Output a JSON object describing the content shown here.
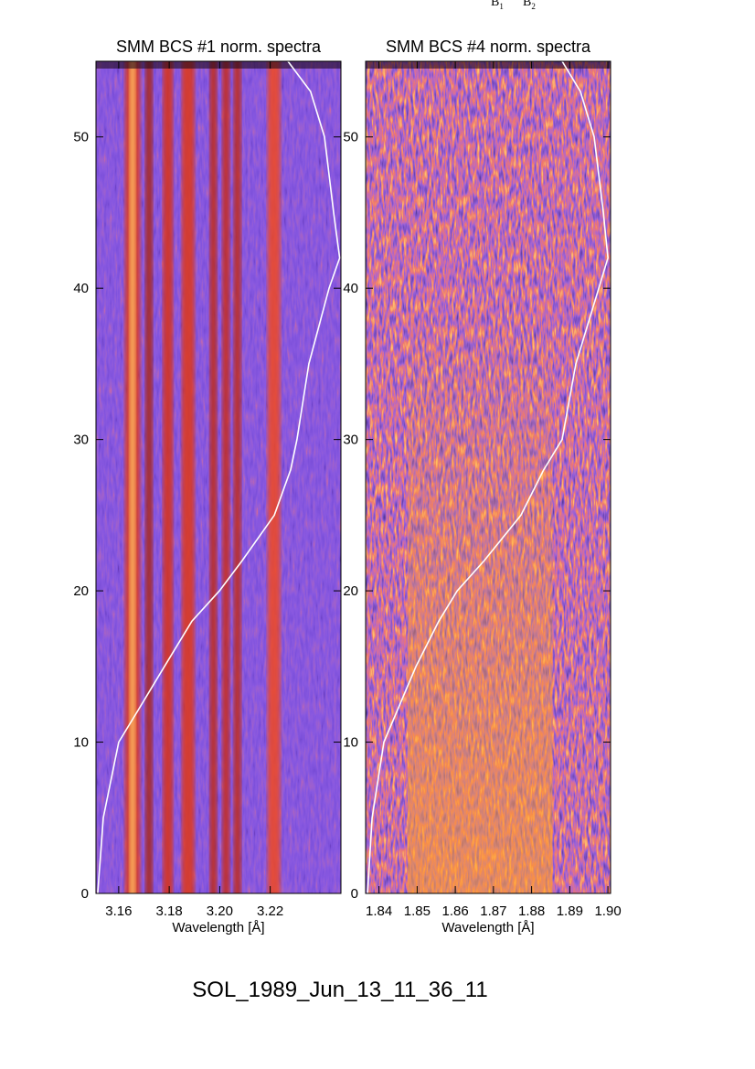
{
  "top_labels": [
    {
      "text": "B",
      "sub": "1"
    },
    {
      "text": "B",
      "sub": "2"
    }
  ],
  "footer": "SOL_1989_Jun_13_11_36_11",
  "chart_data": [
    {
      "type": "heatmap",
      "title": "SMM BCS #1 norm. spectra",
      "x_label": "Wavelength [Å]",
      "xlim": [
        3.151,
        3.248
      ],
      "ylim": [
        0,
        55
      ],
      "xticks": [
        3.16,
        3.18,
        {
          "value": 3.2,
          "label": "3.20"
        },
        3.22
      ],
      "yticks": [
        0,
        10,
        20,
        30,
        40,
        50
      ],
      "background": "blue",
      "bands": [
        {
          "x": 3.1655,
          "width": 0.006,
          "color": "#e03a18"
        },
        {
          "x": 3.1655,
          "width": 0.0025,
          "color": "#ffb860"
        },
        {
          "x": 3.172,
          "width": 0.003,
          "color": "#a82818"
        },
        {
          "x": 3.1795,
          "width": 0.004,
          "color": "#d83018"
        },
        {
          "x": 3.1875,
          "width": 0.005,
          "color": "#e03818"
        },
        {
          "x": 3.1975,
          "width": 0.003,
          "color": "#c02a18"
        },
        {
          "x": 3.2025,
          "width": 0.003,
          "color": "#c82c18"
        },
        {
          "x": 3.207,
          "width": 0.003,
          "color": "#c02a18"
        },
        {
          "x": 3.2215,
          "width": 0.005,
          "color": "#f04820"
        }
      ],
      "curve": {
        "color": "#ffffff",
        "x": [
          3.1517,
          3.1539,
          3.16,
          3.1673,
          3.1781,
          3.189,
          3.1999,
          3.2089,
          3.2216,
          3.2281,
          3.2306,
          3.2353,
          3.2433,
          3.2475,
          3.2451,
          3.2415,
          3.236,
          3.227
        ],
        "y": [
          0,
          5,
          10,
          12,
          15,
          18,
          20,
          22,
          25,
          28,
          30,
          35,
          40,
          42,
          45,
          50,
          53,
          55
        ]
      }
    },
    {
      "type": "heatmap",
      "title": "SMM BCS #4 norm. spectra",
      "x_label": "Wavelength [Å]",
      "xlim": [
        1.8365,
        1.9007
      ],
      "ylim": [
        0,
        55
      ],
      "xticks": [
        1.84,
        1.85,
        1.86,
        1.87,
        1.88,
        1.89,
        {
          "value": 1.9,
          "label": "1.90"
        }
      ],
      "yticks": [
        0,
        10,
        20,
        30,
        40,
        50
      ],
      "background": "speckle",
      "bands": [
        {
          "x": 1.8665,
          "width": 0.038,
          "color": "#ffa028"
        }
      ],
      "curve": {
        "color": "#ffffff",
        "x": [
          1.837,
          1.8382,
          1.8413,
          1.8497,
          1.8557,
          1.8605,
          1.8676,
          1.8772,
          1.8832,
          1.888,
          1.8916,
          1.8976,
          1.9,
          1.8988,
          1.8964,
          1.8928,
          1.888
        ],
        "y": [
          0,
          5,
          10,
          15,
          18,
          20,
          22,
          25,
          28,
          30,
          35,
          40,
          42,
          45,
          50,
          53,
          55
        ]
      }
    }
  ]
}
